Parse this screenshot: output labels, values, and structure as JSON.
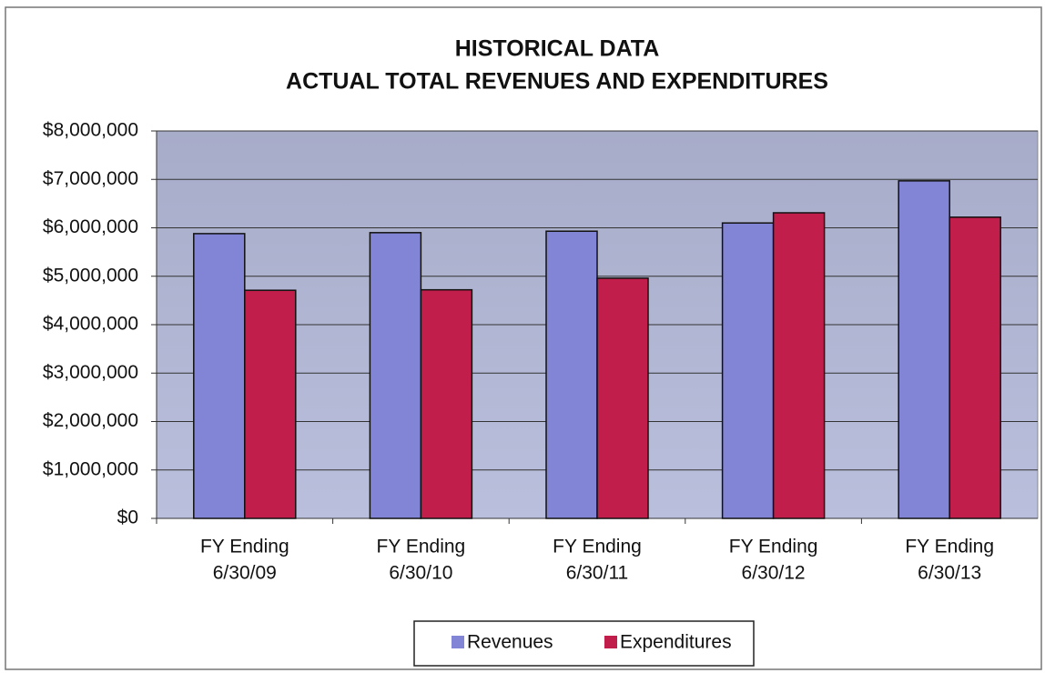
{
  "chart_data": {
    "type": "bar",
    "title": [
      "HISTORICAL DATA",
      "ACTUAL TOTAL REVENUES AND EXPENDITURES"
    ],
    "categories": [
      [
        "FY Ending",
        "6/30/09"
      ],
      [
        "FY Ending",
        "6/30/10"
      ],
      [
        "FY Ending",
        "6/30/11"
      ],
      [
        "FY Ending",
        "6/30/12"
      ],
      [
        "FY Ending",
        "6/30/13"
      ]
    ],
    "series": [
      {
        "name": "Revenues",
        "color": "#8284d6",
        "values": [
          5880000,
          5900000,
          5930000,
          6100000,
          6970000
        ]
      },
      {
        "name": "Expenditures",
        "color": "#c21e4c",
        "values": [
          4710000,
          4720000,
          4960000,
          6310000,
          6220000
        ]
      }
    ],
    "ylim": [
      0,
      8000000
    ],
    "yticks": [
      {
        "value": 0,
        "label": "$0"
      },
      {
        "value": 1000000,
        "label": "$1,000,000"
      },
      {
        "value": 2000000,
        "label": "$2,000,000"
      },
      {
        "value": 3000000,
        "label": "$3,000,000"
      },
      {
        "value": 4000000,
        "label": "$4,000,000"
      },
      {
        "value": 5000000,
        "label": "$5,000,000"
      },
      {
        "value": 6000000,
        "label": "$6,000,000"
      },
      {
        "value": 7000000,
        "label": "$7,000,000"
      },
      {
        "value": 8000000,
        "label": "$8,000,000"
      }
    ],
    "grid": true,
    "legend": "bottom"
  }
}
